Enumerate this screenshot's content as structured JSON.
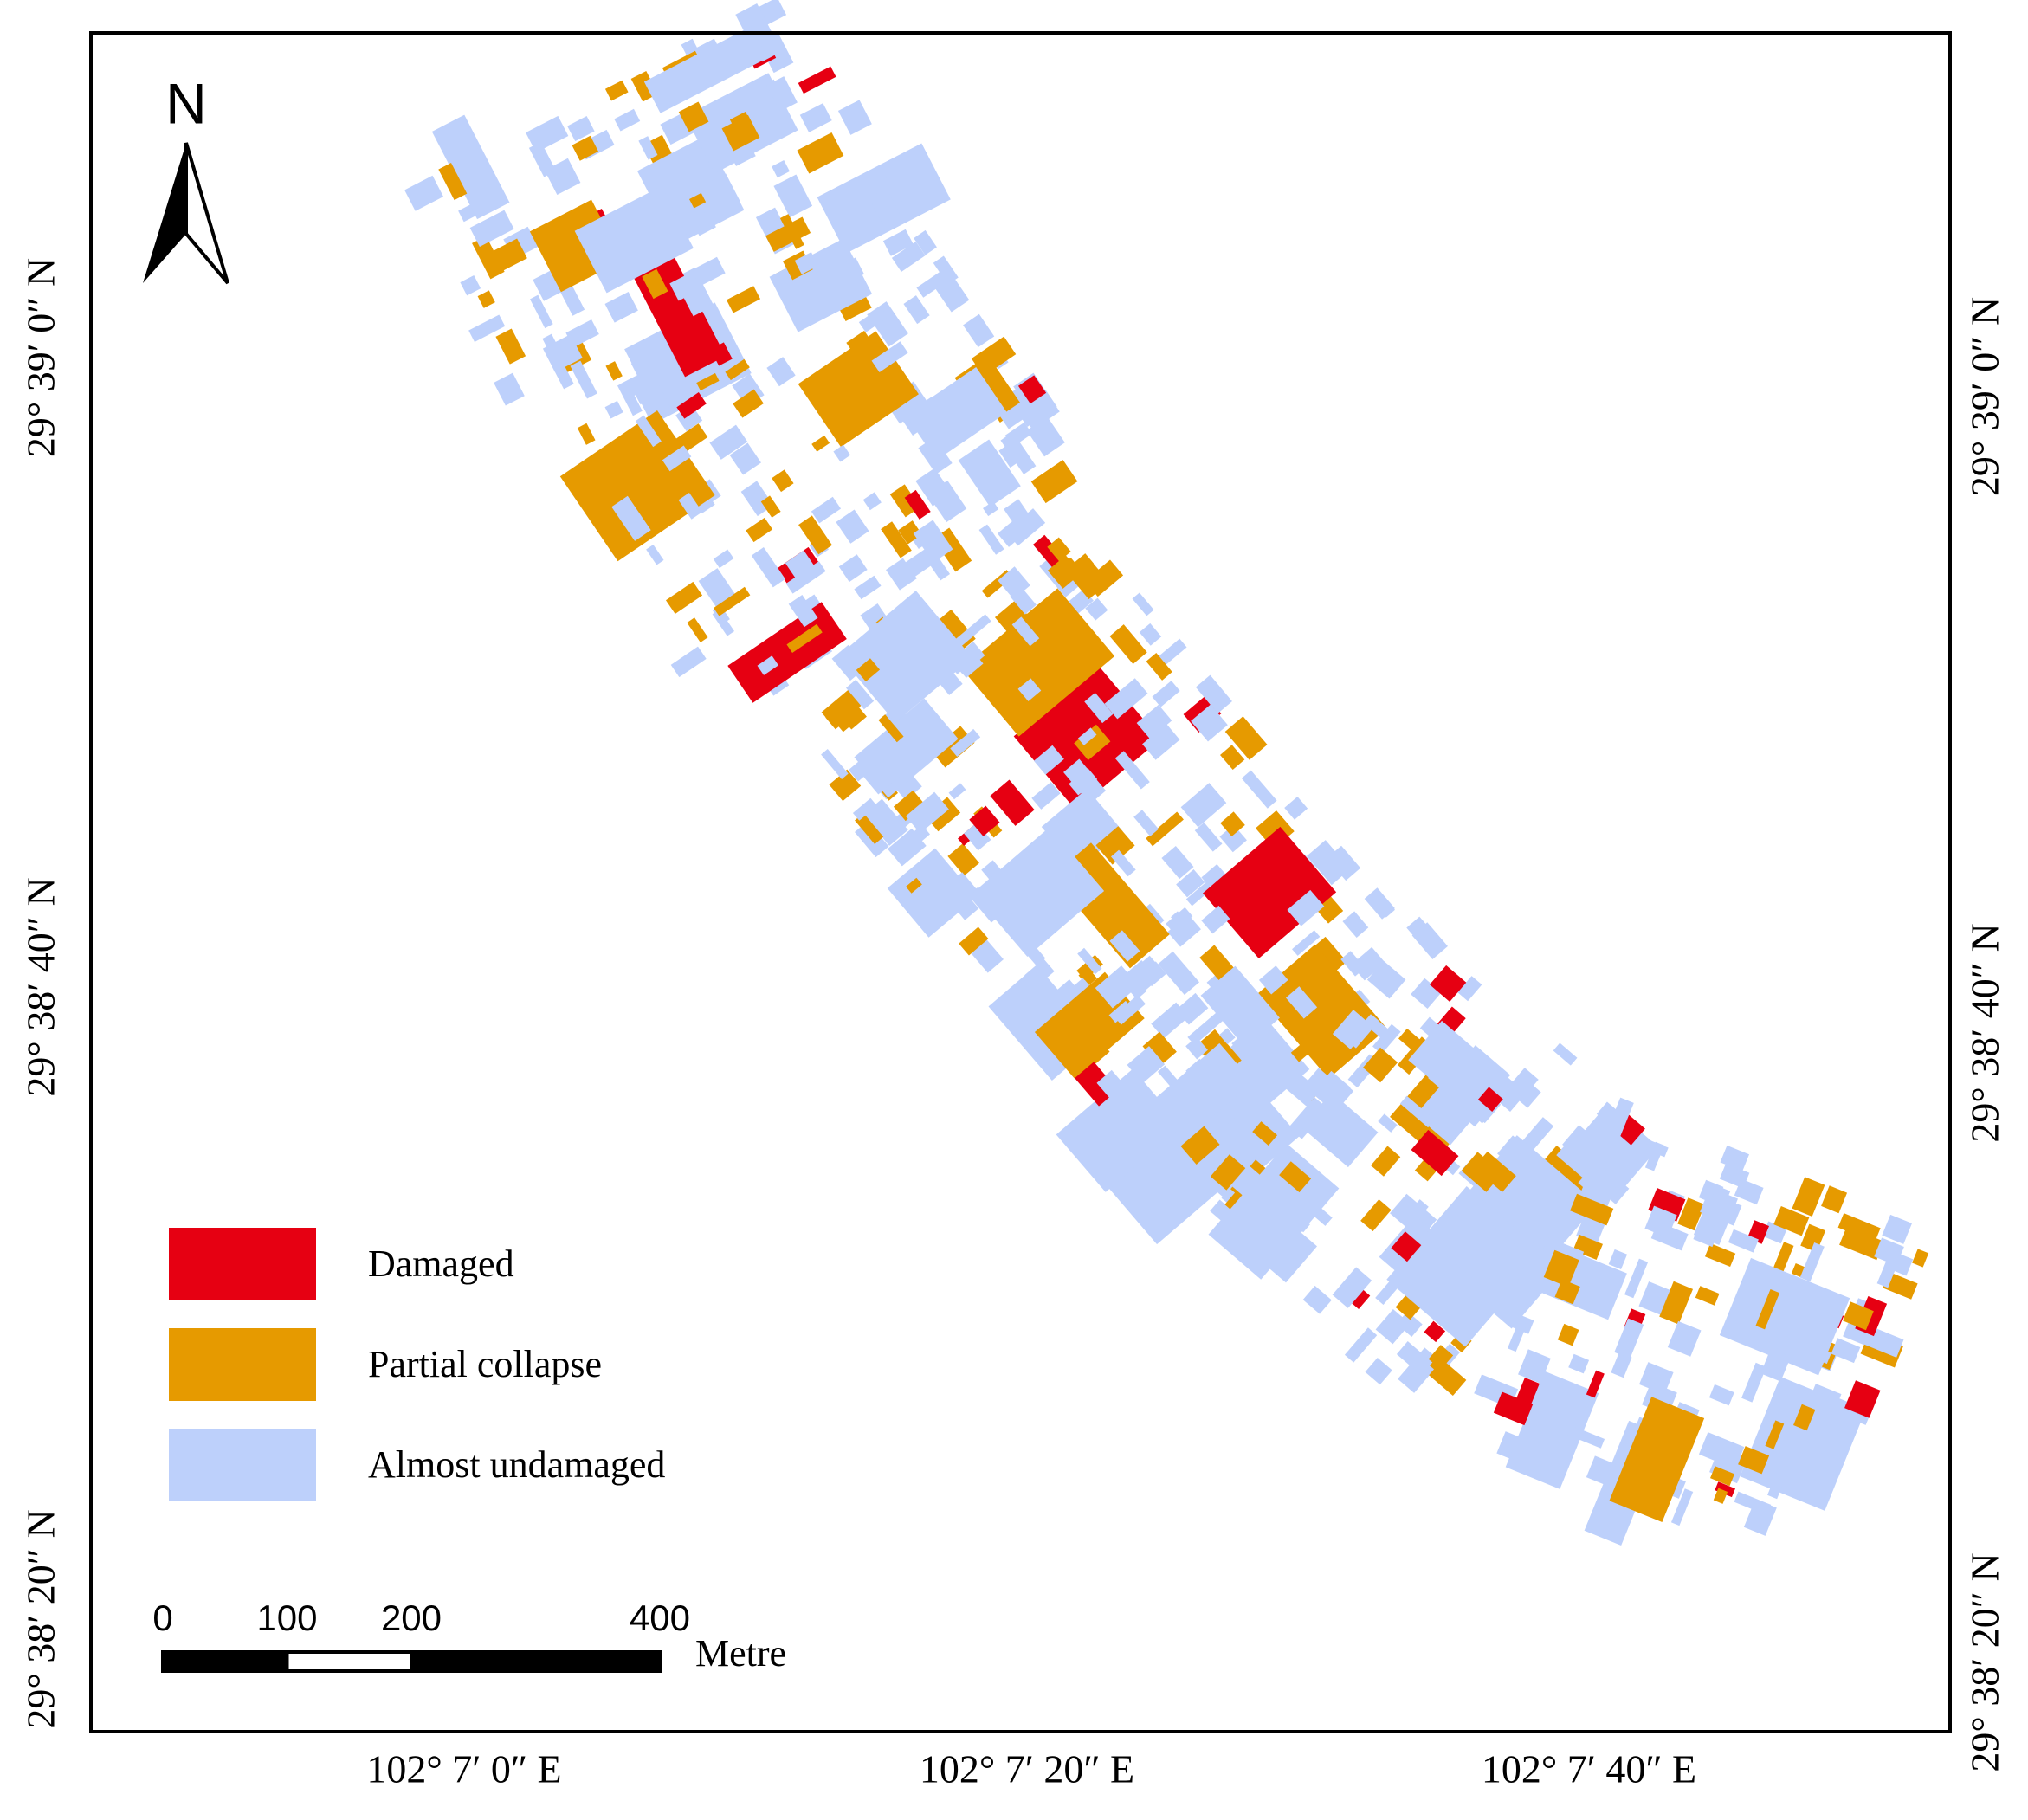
{
  "map": {
    "north_label": "N",
    "lat_labels_left": [
      "29° 39′ 0″ N",
      "29° 38′ 40″ N",
      "29° 38′ 20″ N"
    ],
    "lat_labels_right": [
      "29° 39′ 0″ N",
      "29° 38′ 40″ N",
      "29° 38′ 20″ N"
    ],
    "lon_labels": [
      "102° 7′ 0″ E",
      "102° 7′ 20″ E",
      "102° 7′ 40″ E"
    ],
    "legend": [
      {
        "label": "Damaged",
        "color": "#e60012"
      },
      {
        "label": "Partial collapse",
        "color": "#e69a00"
      },
      {
        "label": "Almost undamaged",
        "color": "#bdd0fb"
      }
    ],
    "scale_bar": {
      "ticks": [
        0,
        100,
        200,
        400
      ],
      "unit": "Metre"
    }
  }
}
